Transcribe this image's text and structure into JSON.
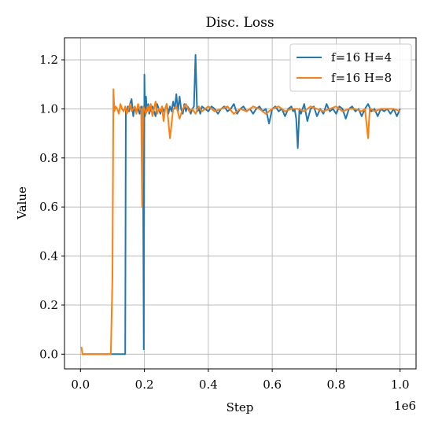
{
  "chart_data": {
    "type": "line",
    "title": "Disc. Loss",
    "xlabel": "Step",
    "ylabel": "Value",
    "x_offset_label": "1e6",
    "xlim": [
      -0.05,
      1.05
    ],
    "ylim": [
      -0.06,
      1.29
    ],
    "x_ticks": [
      0.0,
      0.2,
      0.4,
      0.6,
      0.8,
      1.0
    ],
    "x_tick_labels": [
      "0.0",
      "0.2",
      "0.4",
      "0.6",
      "0.8",
      "1.0"
    ],
    "y_ticks": [
      0.0,
      0.2,
      0.4,
      0.6,
      0.8,
      1.0,
      1.2
    ],
    "y_tick_labels": [
      "0.0",
      "0.2",
      "0.4",
      "0.6",
      "0.8",
      "1.0",
      "1.2"
    ],
    "grid": true,
    "legend_position": "top-right",
    "series": [
      {
        "name": "f=16 H=4",
        "color": "#1f77b4",
        "x": [
          0.005,
          0.01,
          0.02,
          0.14,
          0.142,
          0.145,
          0.148,
          0.152,
          0.155,
          0.16,
          0.165,
          0.17,
          0.175,
          0.18,
          0.185,
          0.19,
          0.195,
          0.198,
          0.2,
          0.202,
          0.205,
          0.208,
          0.212,
          0.215,
          0.22,
          0.225,
          0.23,
          0.235,
          0.24,
          0.245,
          0.25,
          0.255,
          0.26,
          0.265,
          0.27,
          0.275,
          0.28,
          0.285,
          0.29,
          0.295,
          0.3,
          0.305,
          0.31,
          0.315,
          0.32,
          0.325,
          0.33,
          0.335,
          0.34,
          0.345,
          0.35,
          0.355,
          0.36,
          0.365,
          0.37,
          0.375,
          0.38,
          0.39,
          0.4,
          0.41,
          0.42,
          0.43,
          0.44,
          0.45,
          0.46,
          0.47,
          0.48,
          0.49,
          0.5,
          0.51,
          0.52,
          0.53,
          0.54,
          0.55,
          0.56,
          0.57,
          0.58,
          0.59,
          0.6,
          0.61,
          0.62,
          0.63,
          0.64,
          0.65,
          0.66,
          0.665,
          0.67,
          0.675,
          0.68,
          0.685,
          0.69,
          0.7,
          0.71,
          0.72,
          0.73,
          0.74,
          0.75,
          0.76,
          0.77,
          0.78,
          0.79,
          0.8,
          0.81,
          0.82,
          0.83,
          0.84,
          0.85,
          0.86,
          0.87,
          0.88,
          0.89,
          0.9,
          0.91,
          0.92,
          0.93,
          0.94,
          0.95,
          0.96,
          0.97,
          0.98,
          0.99,
          1.0
        ],
        "values": [
          0.0,
          0.0,
          0.0,
          0.0,
          1.0,
          0.98,
          1.01,
          0.99,
          1.02,
          1.04,
          0.97,
          1.01,
          0.99,
          1.0,
          0.98,
          1.01,
          1.0,
          0.02,
          1.14,
          0.97,
          1.05,
          0.99,
          1.02,
          0.98,
          1.0,
          1.01,
          0.99,
          0.97,
          1.02,
          1.0,
          0.98,
          1.01,
          0.99,
          1.0,
          1.02,
          0.98,
          1.01,
          0.99,
          1.03,
          1.0,
          1.06,
          0.99,
          1.05,
          1.0,
          0.98,
          1.02,
          0.99,
          1.01,
          1.0,
          0.98,
          1.0,
          1.01,
          1.22,
          0.99,
          1.0,
          0.98,
          1.01,
          1.0,
          0.99,
          1.01,
          1.0,
          0.98,
          1.0,
          1.01,
          0.99,
          1.0,
          1.02,
          0.98,
          1.0,
          1.01,
          0.99,
          1.0,
          0.98,
          1.0,
          1.01,
          0.99,
          1.0,
          0.94,
          1.0,
          1.01,
          0.99,
          1.0,
          0.97,
          1.0,
          1.01,
          0.99,
          1.0,
          0.96,
          0.84,
          1.0,
          0.98,
          1.02,
          0.95,
          1.0,
          1.01,
          0.97,
          1.0,
          0.98,
          1.02,
          0.99,
          1.0,
          0.98,
          1.01,
          1.0,
          0.96,
          1.0,
          1.01,
          0.99,
          1.0,
          0.97,
          1.0,
          1.02,
          0.99,
          1.0,
          0.97,
          1.0,
          0.99,
          1.0,
          0.98,
          1.0,
          0.97,
          1.0
        ]
      },
      {
        "name": "f=16 H=8",
        "color": "#ff7f0e",
        "x": [
          0.003,
          0.006,
          0.01,
          0.02,
          0.095,
          0.1,
          0.103,
          0.106,
          0.11,
          0.115,
          0.12,
          0.125,
          0.13,
          0.135,
          0.14,
          0.145,
          0.15,
          0.155,
          0.16,
          0.165,
          0.17,
          0.175,
          0.18,
          0.185,
          0.19,
          0.193,
          0.196,
          0.2,
          0.205,
          0.21,
          0.215,
          0.22,
          0.225,
          0.23,
          0.235,
          0.24,
          0.245,
          0.25,
          0.255,
          0.26,
          0.265,
          0.27,
          0.28,
          0.29,
          0.3,
          0.31,
          0.32,
          0.33,
          0.34,
          0.35,
          0.36,
          0.37,
          0.38,
          0.39,
          0.4,
          0.42,
          0.44,
          0.46,
          0.48,
          0.5,
          0.52,
          0.54,
          0.56,
          0.58,
          0.6,
          0.62,
          0.64,
          0.66,
          0.68,
          0.7,
          0.72,
          0.74,
          0.76,
          0.78,
          0.8,
          0.82,
          0.84,
          0.86,
          0.88,
          0.89,
          0.9,
          0.905,
          0.91,
          0.92,
          0.94,
          0.96,
          0.98,
          1.0
        ],
        "values": [
          0.03,
          0.0,
          0.0,
          0.0,
          0.0,
          0.32,
          1.08,
          0.99,
          1.01,
          1.0,
          0.98,
          1.02,
          1.0,
          0.99,
          1.01,
          0.98,
          1.0,
          1.02,
          0.99,
          1.0,
          1.01,
          0.98,
          1.02,
          1.0,
          1.0,
          0.6,
          1.01,
          1.0,
          0.98,
          1.01,
          0.99,
          1.02,
          0.97,
          1.0,
          1.03,
          0.98,
          1.0,
          0.99,
          1.01,
          0.95,
          1.0,
          1.02,
          0.88,
          1.0,
          1.01,
          0.96,
          1.0,
          1.02,
          0.99,
          1.0,
          0.98,
          1.01,
          0.99,
          1.0,
          1.01,
          0.99,
          1.0,
          1.01,
          0.98,
          1.0,
          0.99,
          1.01,
          1.0,
          0.98,
          1.0,
          1.01,
          0.99,
          1.0,
          1.0,
          0.99,
          1.01,
          1.0,
          0.99,
          1.0,
          1.01,
          0.99,
          1.0,
          1.0,
          0.99,
          1.0,
          0.88,
          1.0,
          1.0,
          0.99,
          1.0,
          1.0,
          1.0,
          0.99
        ]
      }
    ]
  }
}
